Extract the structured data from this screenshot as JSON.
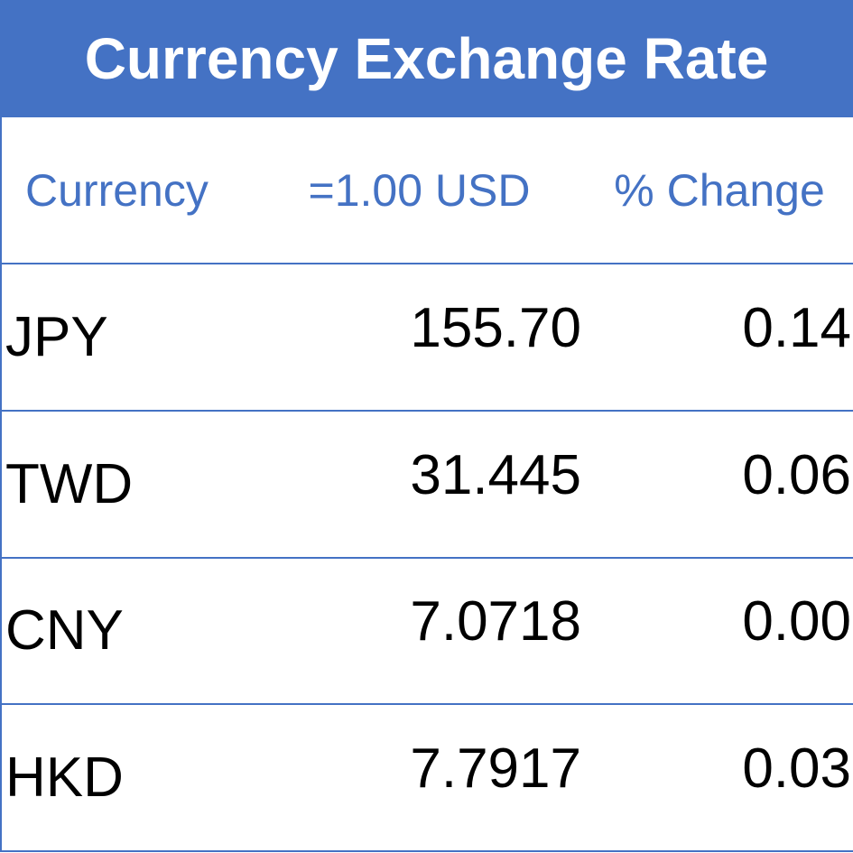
{
  "header": {
    "title": "Currency Exchange Rate"
  },
  "table": {
    "columns": [
      "Currency",
      "=1.00 USD",
      "% Change"
    ],
    "rows": [
      [
        "JPY",
        "155.70",
        "0.14"
      ],
      [
        "TWD",
        "31.445",
        "0.06"
      ],
      [
        "CNY",
        "7.0718",
        "0.00"
      ],
      [
        "HKD",
        "7.7917",
        "0.03"
      ]
    ]
  }
}
